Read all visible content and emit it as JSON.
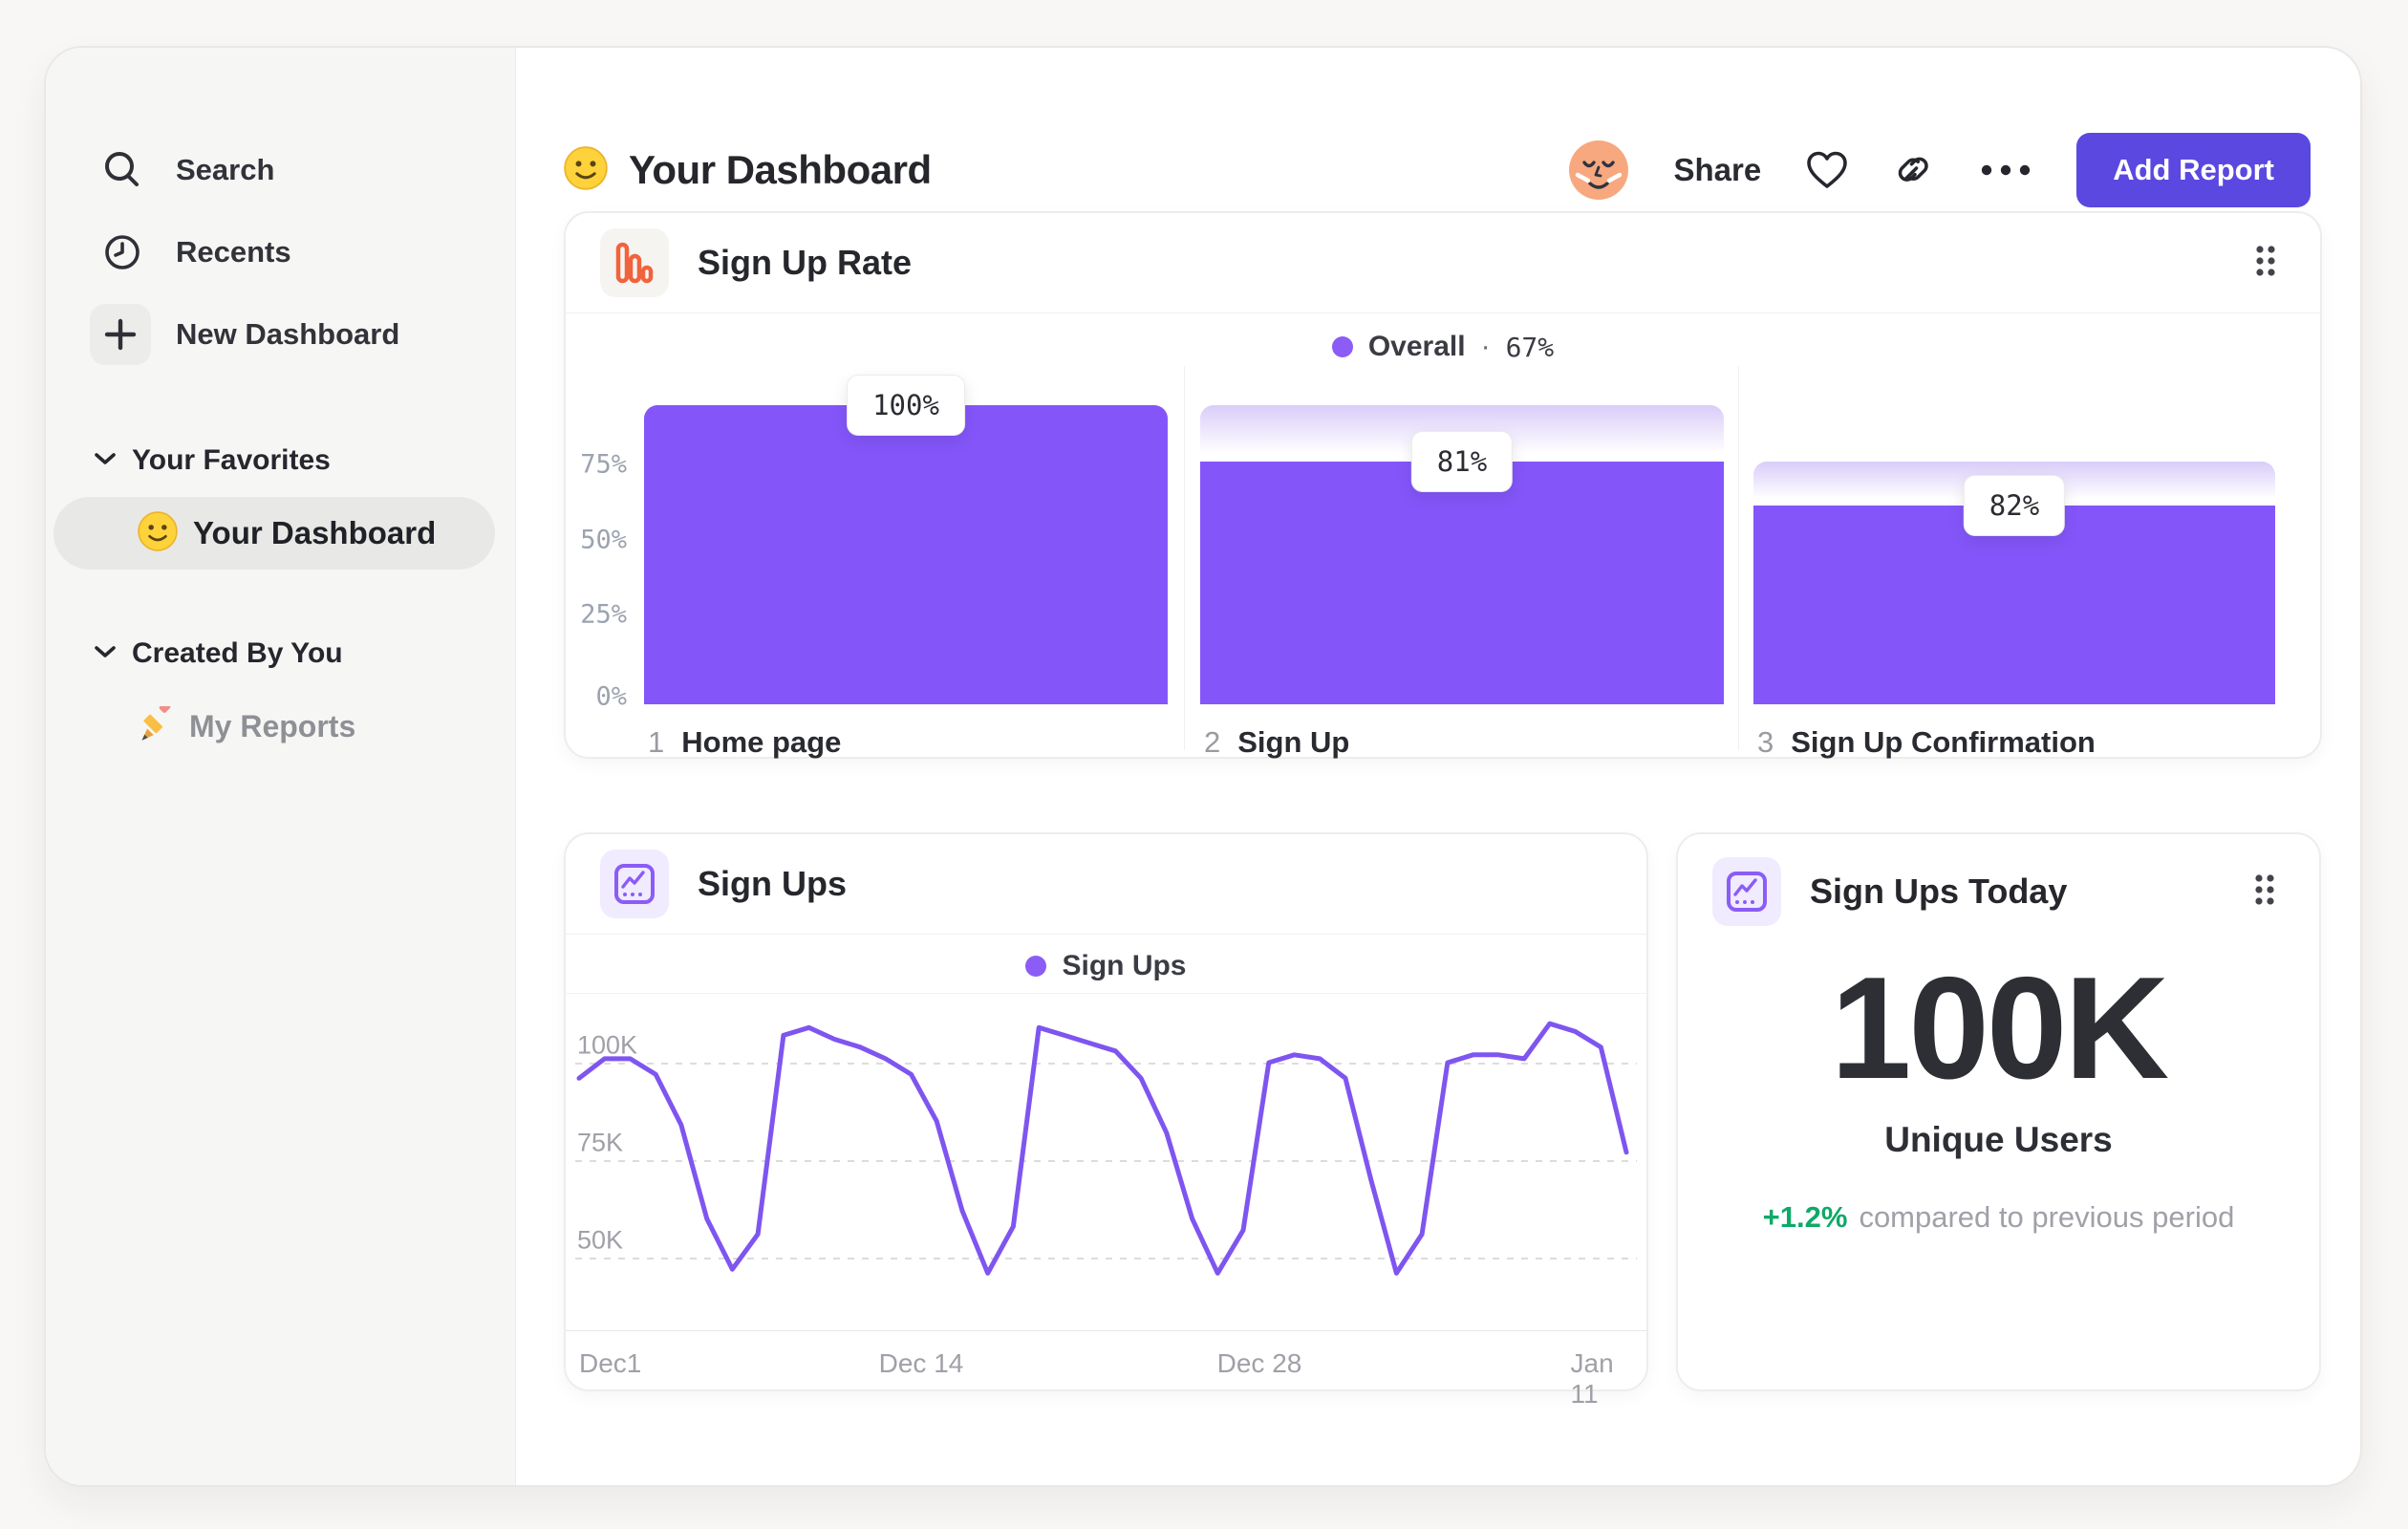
{
  "sidebar": {
    "items": [
      {
        "label": "Search"
      },
      {
        "label": "Recents"
      },
      {
        "label": "New Dashboard"
      }
    ],
    "sections": [
      {
        "label": "Your Favorites",
        "items": [
          {
            "label": "Your Dashboard",
            "icon": "smiley-emoji",
            "selected": true
          }
        ]
      },
      {
        "label": "Created By You",
        "items": [
          {
            "label": "My Reports",
            "icon": "pencil-emoji",
            "selected": false
          }
        ]
      }
    ]
  },
  "header": {
    "title": "Your Dashboard",
    "title_icon": "smiley-emoji",
    "share_label": "Share",
    "add_report_label": "Add Report",
    "icons": [
      "avatar",
      "heart-icon",
      "link-icon",
      "ellipsis-icon"
    ]
  },
  "cards": {
    "funnel": {
      "title": "Sign Up Rate",
      "icon": "bar-chart-icon",
      "legend_name": "Overall",
      "legend_sep": "·",
      "legend_value": "67%"
    },
    "line": {
      "title": "Sign Ups",
      "icon": "line-chart-icon",
      "legend_name": "Sign Ups"
    },
    "metric": {
      "title": "Sign Ups Today",
      "icon": "line-chart-icon"
    }
  },
  "chart_data": [
    {
      "type": "bar",
      "variant": "funnel",
      "title": "Sign Up Rate",
      "legend": {
        "series": "Overall",
        "overall_conversion": "67%"
      },
      "ylim": [
        0,
        100
      ],
      "yticks": [
        {
          "label": "0%",
          "pct": 0
        },
        {
          "label": "25%",
          "pct": 25
        },
        {
          "label": "50%",
          "pct": 50
        },
        {
          "label": "75%",
          "pct": 75
        }
      ],
      "steps": [
        {
          "index": "1",
          "label": "Home page",
          "conversion_label": "100%",
          "conversion_from_previous_pct": 100,
          "absolute_pct": 100,
          "previous_absolute_pct": 100
        },
        {
          "index": "2",
          "label": "Sign Up",
          "conversion_label": "81%",
          "conversion_from_previous_pct": 81,
          "absolute_pct": 81,
          "previous_absolute_pct": 100
        },
        {
          "index": "3",
          "label": "Sign Up Confirmation",
          "conversion_label": "82%",
          "conversion_from_previous_pct": 82,
          "absolute_pct": 66.4,
          "previous_absolute_pct": 81
        }
      ]
    },
    {
      "type": "line",
      "title": "Sign Ups",
      "legend": "Sign Ups",
      "x_labels": [
        "Dec1",
        "Dec 14",
        "Dec 28",
        "Jan 11"
      ],
      "x_label_days": [
        0,
        13,
        27,
        41
      ],
      "unit": "thousands",
      "ylim": [
        40,
        115
      ],
      "yticks": [
        {
          "label": "100K",
          "value": 100
        },
        {
          "label": "75K",
          "value": 75
        },
        {
          "label": "50K",
          "value": 50
        }
      ],
      "values_thousands": [
        96,
        101,
        101,
        97,
        84,
        60,
        47,
        56,
        107,
        109,
        106,
        104,
        101,
        97,
        85,
        62,
        46,
        58,
        109,
        107,
        105,
        103,
        96,
        82,
        60,
        46,
        57,
        100,
        102,
        101,
        96,
        70,
        46,
        56,
        100,
        102,
        102,
        101,
        110,
        108,
        104,
        77
      ]
    },
    {
      "type": "metric",
      "title": "Sign Ups Today",
      "value": "100K",
      "metric_label": "Unique Users",
      "delta_pct": "+1.2%",
      "delta_caption": "compared to previous period",
      "delta_direction": "up"
    }
  ],
  "colors": {
    "accent_purple": "#8456fa",
    "legend_dot": "#8b5cf6",
    "line_stroke": "#7f55f0",
    "add_report_button": "#5a48e0",
    "funnel_icon_orange": "#f0633c",
    "delta_green": "#0fa968",
    "sidebar_bg": "#f6f6f4"
  }
}
